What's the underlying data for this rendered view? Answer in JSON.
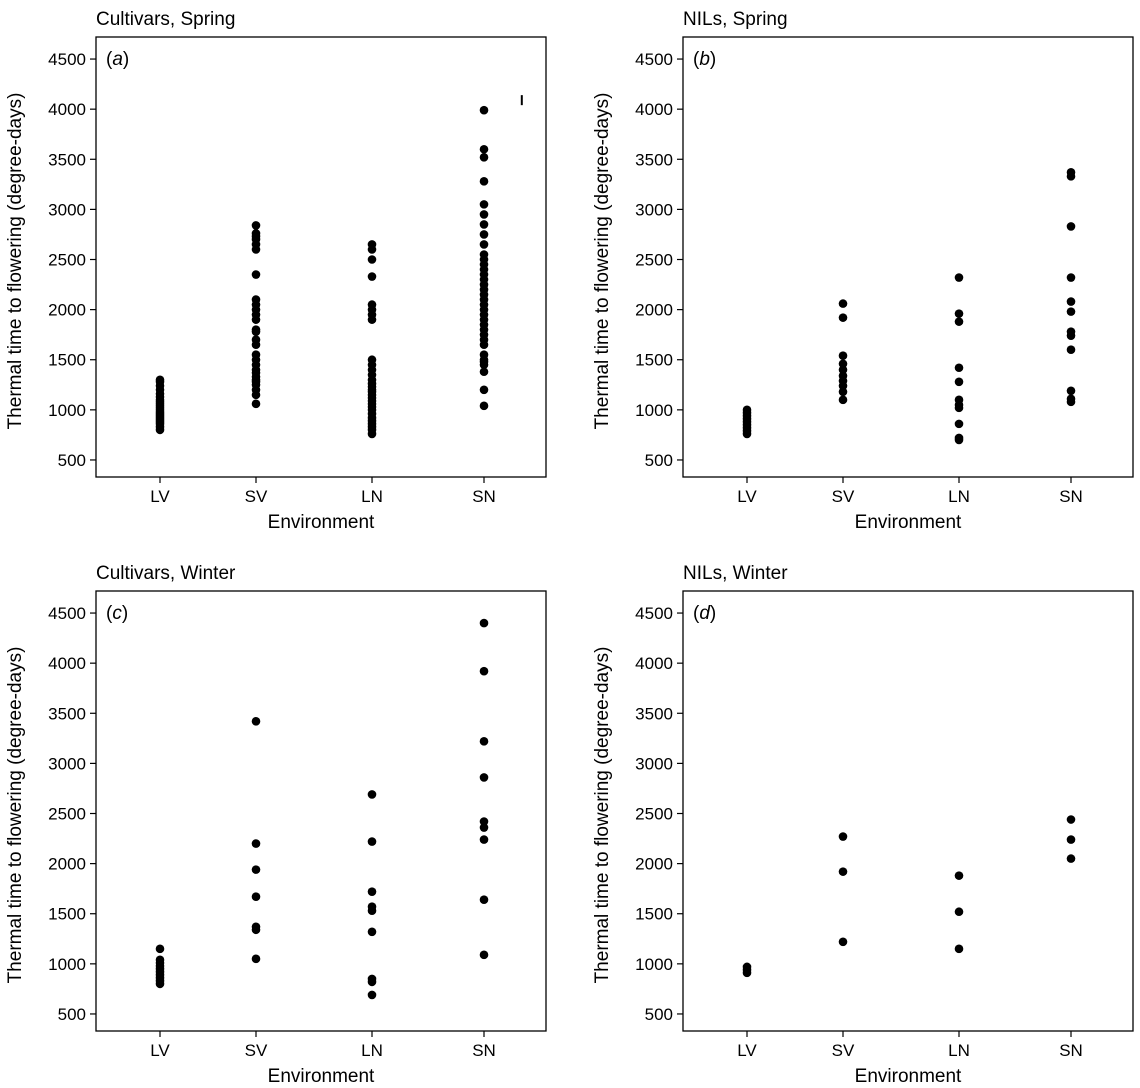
{
  "chart_data": [
    {
      "type": "scatter",
      "panel_label": "a",
      "title": "Cultivars, Spring",
      "xlabel": "Environment",
      "ylabel": "Thermal time to flowering (degree-days)",
      "ylim": [
        330,
        4720
      ],
      "yticks": [
        500,
        1000,
        1500,
        2000,
        2500,
        3000,
        3500,
        4000,
        4500
      ],
      "categories": [
        "LV",
        "SV",
        "LN",
        "SN"
      ],
      "error_bar": {
        "category_position": 4.35,
        "low": 4040,
        "high": 4140
      },
      "points": {
        "LV": [
          800,
          830,
          860,
          880,
          900,
          920,
          940,
          960,
          980,
          1000,
          1020,
          1040,
          1060,
          1080,
          1100,
          1130,
          1160,
          1200,
          1240,
          1280,
          1300
        ],
        "SV": [
          1060,
          1150,
          1200,
          1250,
          1280,
          1300,
          1330,
          1370,
          1400,
          1450,
          1500,
          1550,
          1650,
          1700,
          1780,
          1800,
          1900,
          1950,
          2000,
          2050,
          2100,
          2350,
          2600,
          2650,
          2700,
          2730,
          2760,
          2840
        ],
        "LN": [
          760,
          800,
          830,
          860,
          890,
          920,
          960,
          1000,
          1030,
          1060,
          1090,
          1120,
          1150,
          1180,
          1200,
          1230,
          1260,
          1300,
          1350,
          1400,
          1450,
          1500,
          1900,
          1950,
          2000,
          2050,
          2330,
          2500,
          2600,
          2650
        ],
        "SN": [
          1040,
          1200,
          1380,
          1450,
          1480,
          1500,
          1550,
          1650,
          1700,
          1750,
          1800,
          1850,
          1900,
          1950,
          2000,
          2050,
          2100,
          2150,
          2200,
          2250,
          2300,
          2350,
          2400,
          2450,
          2500,
          2550,
          2650,
          2750,
          2850,
          2950,
          3050,
          3280,
          3520,
          3600,
          3990
        ]
      }
    },
    {
      "type": "scatter",
      "panel_label": "b",
      "title": "NILs, Spring",
      "xlabel": "Environment",
      "ylabel": "Thermal time to flowering (degree-days)",
      "ylim": [
        330,
        4720
      ],
      "yticks": [
        500,
        1000,
        1500,
        2000,
        2500,
        3000,
        3500,
        4000,
        4500
      ],
      "categories": [
        "LV",
        "SV",
        "LN",
        "SN"
      ],
      "points": {
        "LV": [
          760,
          790,
          820,
          850,
          880,
          910,
          940,
          970,
          1000
        ],
        "SV": [
          1100,
          1180,
          1240,
          1290,
          1340,
          1400,
          1460,
          1540,
          1920,
          2060
        ],
        "LN": [
          700,
          720,
          860,
          1020,
          1050,
          1100,
          1280,
          1420,
          1880,
          1960,
          2320
        ],
        "SN": [
          1080,
          1110,
          1190,
          1600,
          1740,
          1780,
          1980,
          2080,
          2320,
          2830,
          3330,
          3370
        ]
      }
    },
    {
      "type": "scatter",
      "panel_label": "c",
      "title": "Cultivars, Winter",
      "xlabel": "Environment",
      "ylabel": "Thermal time to flowering (degree-days)",
      "ylim": [
        330,
        4720
      ],
      "yticks": [
        500,
        1000,
        1500,
        2000,
        2500,
        3000,
        3500,
        4000,
        4500
      ],
      "categories": [
        "LV",
        "SV",
        "LN",
        "SN"
      ],
      "points": {
        "LV": [
          800,
          830,
          860,
          890,
          920,
          950,
          980,
          1010,
          1040,
          1150
        ],
        "SV": [
          1050,
          1340,
          1370,
          1670,
          1940,
          2200,
          3420
        ],
        "LN": [
          690,
          820,
          850,
          1320,
          1530,
          1570,
          1720,
          2220,
          2690
        ],
        "SN": [
          1090,
          1640,
          2240,
          2360,
          2420,
          2860,
          3220,
          3920,
          4400
        ]
      }
    },
    {
      "type": "scatter",
      "panel_label": "d",
      "title": "NILs, Winter",
      "xlabel": "Environment",
      "ylabel": "Thermal time to flowering (degree-days)",
      "ylim": [
        330,
        4720
      ],
      "yticks": [
        500,
        1000,
        1500,
        2000,
        2500,
        3000,
        3500,
        4000,
        4500
      ],
      "categories": [
        "LV",
        "SV",
        "LN",
        "SN"
      ],
      "points": {
        "LV": [
          910,
          940,
          970
        ],
        "SV": [
          1220,
          1920,
          2270
        ],
        "LN": [
          1150,
          1520,
          1880
        ],
        "SN": [
          2050,
          2240,
          2440
        ]
      }
    }
  ]
}
